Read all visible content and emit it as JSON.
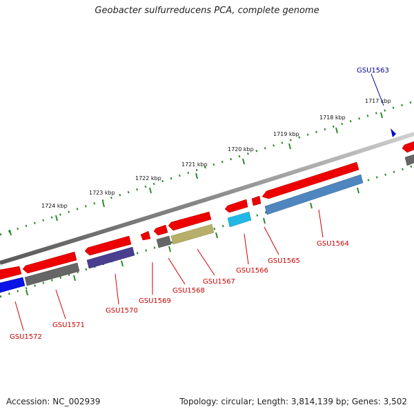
{
  "title": "Geobacter sulfurreducens PCA, complete genome",
  "footer": {
    "accession": "Accession: NC_002939",
    "summary": "Topology: circular; Length: 3,814,139 bp; Genes: 3,502"
  },
  "colors": {
    "backbone": "#8a8a8a",
    "tick": "#2a8a2a",
    "label_red": "#cc0000",
    "label_blue": "#000099"
  },
  "kbp_labels": [
    "1717 kbp",
    "1718 kbp",
    "1719 kbp",
    "1720 kbp",
    "1721 kbp",
    "1722 kbp",
    "1723 kbp",
    "1724 kbp"
  ],
  "genes": [
    {
      "id": "GSU1563",
      "color": "#0000cc",
      "label_color": "#000099"
    },
    {
      "id": "GSU1564",
      "color": "#4f86bf",
      "label_color": "#cc0000"
    },
    {
      "id": "GSU1565",
      "color": "#ee0000",
      "label_color": "#cc0000"
    },
    {
      "id": "GSU1566",
      "color": "#22b8e6",
      "label_color": "#cc0000"
    },
    {
      "id": "GSU1567",
      "color": "#b7ae6a",
      "label_color": "#cc0000"
    },
    {
      "id": "GSU1568",
      "color": "#666666",
      "label_color": "#cc0000"
    },
    {
      "id": "GSU1569",
      "color": "#ee0000",
      "label_color": "#cc0000"
    },
    {
      "id": "GSU1570",
      "color": "#4a3f8f",
      "label_color": "#cc0000"
    },
    {
      "id": "GSU1571",
      "color": "#666666",
      "label_color": "#cc0000"
    },
    {
      "id": "GSU1572",
      "color": "#0a14e6",
      "label_color": "#cc0000"
    }
  ]
}
